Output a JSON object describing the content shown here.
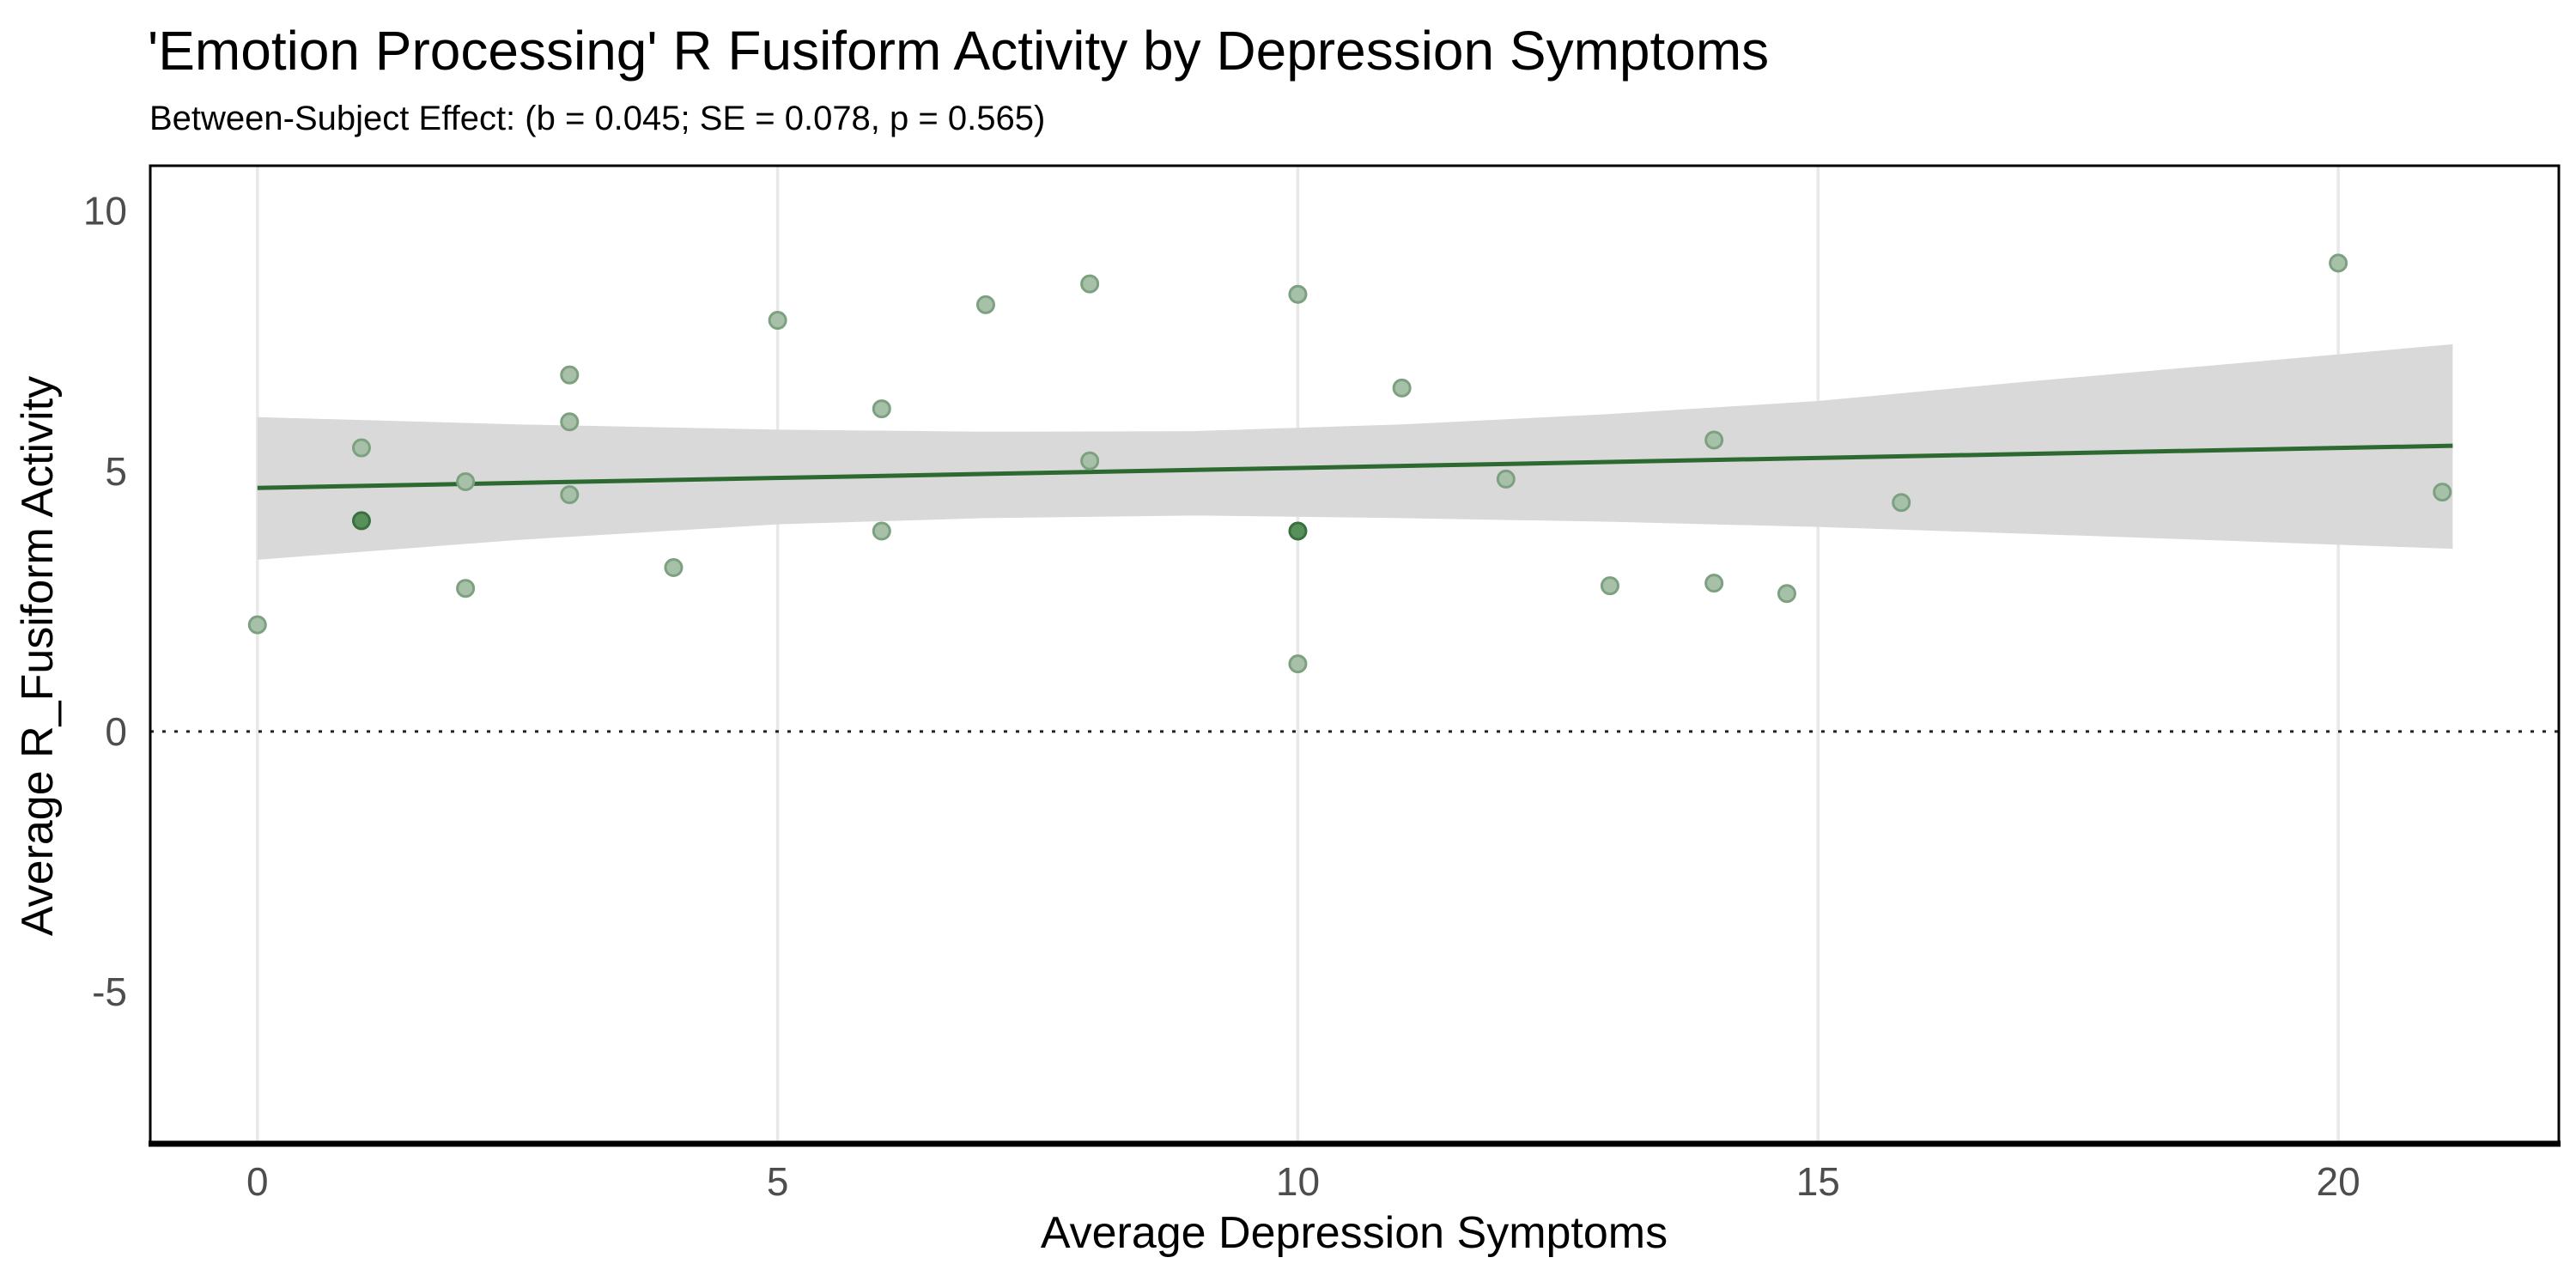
{
  "chart_data": {
    "type": "scatter",
    "title": "'Emotion Processing' R Fusiform Activity by Depression Symptoms",
    "subtitle": "Between-Subject Effect: (b = 0.045; SE = 0.078, p = 0.565)",
    "xlabel": "Average Depression Symptoms",
    "ylabel": "Average R_Fusiform Activity",
    "stats": {
      "b": 0.045,
      "SE": 0.078,
      "p": 0.565
    },
    "xlim": [
      -1.03,
      22.12
    ],
    "ylim": [
      -7.92,
      10.87
    ],
    "x_ticks": [
      0,
      5,
      10,
      15,
      20
    ],
    "y_ticks": [
      10,
      5,
      0,
      -5
    ],
    "grid": "vertical-major-only",
    "legend": "none",
    "zero_line": {
      "y": 0,
      "style": "dotted"
    },
    "points": [
      {
        "x": 0,
        "y": 2.05
      },
      {
        "x": 1,
        "y": 5.45
      },
      {
        "x": 1,
        "y": 4.05,
        "overlap": true,
        "count": 2
      },
      {
        "x": 2,
        "y": 4.8
      },
      {
        "x": 2,
        "y": 2.75
      },
      {
        "x": 3,
        "y": 6.85
      },
      {
        "x": 3,
        "y": 5.95
      },
      {
        "x": 3,
        "y": 4.55
      },
      {
        "x": 4,
        "y": 3.15
      },
      {
        "x": 5,
        "y": 7.9
      },
      {
        "x": 6,
        "y": 6.2
      },
      {
        "x": 6,
        "y": 3.85
      },
      {
        "x": 7,
        "y": 8.2
      },
      {
        "x": 8,
        "y": 8.6
      },
      {
        "x": 8,
        "y": 5.2
      },
      {
        "x": 10,
        "y": 8.4
      },
      {
        "x": 10,
        "y": 3.85,
        "overlap": true,
        "count": 2
      },
      {
        "x": 10,
        "y": 1.3
      },
      {
        "x": 11,
        "y": 6.6
      },
      {
        "x": 12,
        "y": 4.85
      },
      {
        "x": 13,
        "y": 2.8
      },
      {
        "x": 14,
        "y": 5.6
      },
      {
        "x": 14,
        "y": 2.85
      },
      {
        "x": 14.7,
        "y": 2.65
      },
      {
        "x": 15.8,
        "y": 4.4
      },
      {
        "x": 20,
        "y": 9.0
      },
      {
        "x": 21,
        "y": 4.6
      }
    ],
    "regression_line": {
      "x": [
        0,
        21.1
      ],
      "y": [
        4.68,
        5.49
      ]
    },
    "ci_band": {
      "x": [
        0,
        2.5,
        5,
        7,
        9,
        11,
        13,
        15,
        17,
        19,
        21.1
      ],
      "top": [
        6.04,
        5.9,
        5.8,
        5.76,
        5.77,
        5.9,
        6.1,
        6.35,
        6.72,
        7.07,
        7.44
      ],
      "bottom": [
        3.3,
        3.68,
        3.98,
        4.1,
        4.15,
        4.1,
        4.03,
        3.93,
        3.8,
        3.66,
        3.51
      ]
    },
    "colors": {
      "line": "#2d6a32",
      "band": "#d9d9d9",
      "grid": "#e8e8e8",
      "point_fill": "#a6c1a7",
      "point_stroke": "#7da081",
      "point_dark_fill": "#58905c",
      "point_dark_stroke": "#38703e",
      "tick_label": "#4d4d4d",
      "border": "#000000"
    }
  }
}
